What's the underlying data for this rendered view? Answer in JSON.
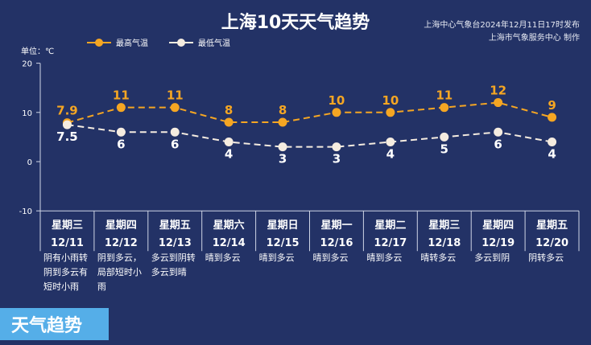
{
  "header": {
    "title": "上海10天天气趋势",
    "publisher": "上海中心气象台2024年12月11日17时发布",
    "producer": "上海市气象服务中心 制作",
    "unit": "单位：℃"
  },
  "badge": "天气趋势",
  "chart_data": {
    "type": "line",
    "title": "上海10天天气趋势",
    "ylabel": "单位：℃",
    "ylim": [
      -10,
      20
    ],
    "yticks": [
      20,
      10,
      0,
      -10
    ],
    "legend_position": "top-left",
    "categories": [
      "12/11",
      "12/12",
      "12/13",
      "12/14",
      "12/15",
      "12/16",
      "12/17",
      "12/18",
      "12/19",
      "12/20"
    ],
    "weekdays": [
      "星期三",
      "星期四",
      "星期五",
      "星期六",
      "星期日",
      "星期一",
      "星期二",
      "星期三",
      "星期四",
      "星期五"
    ],
    "weather": [
      "阴有小雨转阴到多云有短时小雨",
      "阴到多云，局部短时小雨",
      "多云到阴转多云到晴",
      "晴到多云",
      "晴到多云",
      "晴到多云",
      "晴到多云",
      "晴转多云",
      "多云到阴",
      "阴转多云"
    ],
    "series": [
      {
        "name": "最高气温",
        "color": "#f5a623",
        "values": [
          7.9,
          11,
          11,
          8,
          8,
          10,
          10,
          11,
          12,
          9
        ]
      },
      {
        "name": "最低气温",
        "color": "#f5ece0",
        "values": [
          7.5,
          6,
          6,
          4,
          3,
          3,
          4,
          5,
          6,
          4
        ]
      }
    ]
  }
}
